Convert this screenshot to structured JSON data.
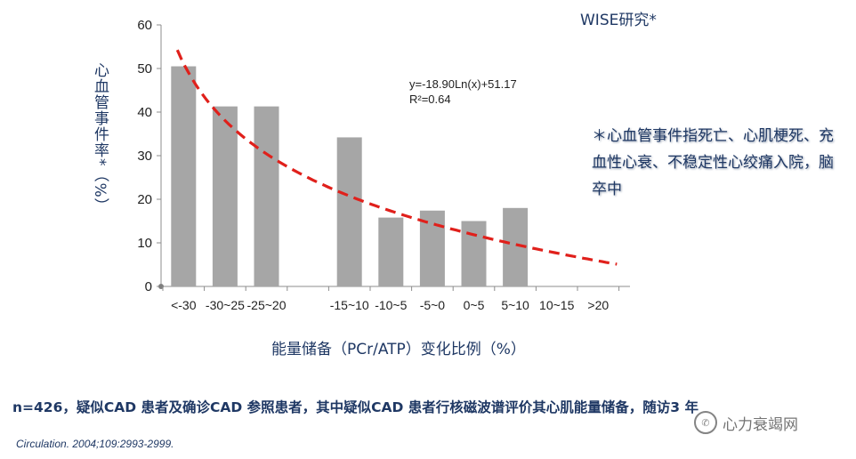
{
  "chart_data": {
    "type": "bar",
    "title": "WISE研究*",
    "categories": [
      "<-30",
      "-30~25",
      "-25~20",
      "",
      "-15~10",
      "-10~5",
      "-5~0",
      "0~5",
      "5~10",
      "10~15",
      ">20"
    ],
    "values": [
      50.5,
      41.3,
      41.3,
      0,
      34.2,
      15.8,
      17.4,
      15.0,
      18.0,
      0,
      0
    ],
    "xlabel": "能量储备（PCr/ATP）变化比例（%）",
    "ylabel": "心血管事件率*（%）",
    "ylim": [
      0,
      60
    ],
    "yticks": [
      0,
      10,
      20,
      30,
      40,
      50,
      60
    ],
    "grid": false,
    "trendline": {
      "type": "logarithmic",
      "a": -18.9,
      "b": 51.17,
      "equation": "y=-18.90Ln(x)+51.17",
      "r2": "R²=0.64",
      "color": "#e0201b"
    },
    "bar_color": "#a6a6a6"
  },
  "footnote": "＊心血管事件指死亡、心肌梗死、充血性心衰、不稳定性心绞痛入院，脑卒中",
  "caption": "n=426，疑似CAD 患者及确诊CAD 参照患者，其中疑似CAD 患者行核磁波谱评价其心肌能量储备，随访3 年",
  "citation": "Circulation. 2004;109:2993-2999.",
  "watermark": "心力衰竭网",
  "icon": "wechat-icon"
}
